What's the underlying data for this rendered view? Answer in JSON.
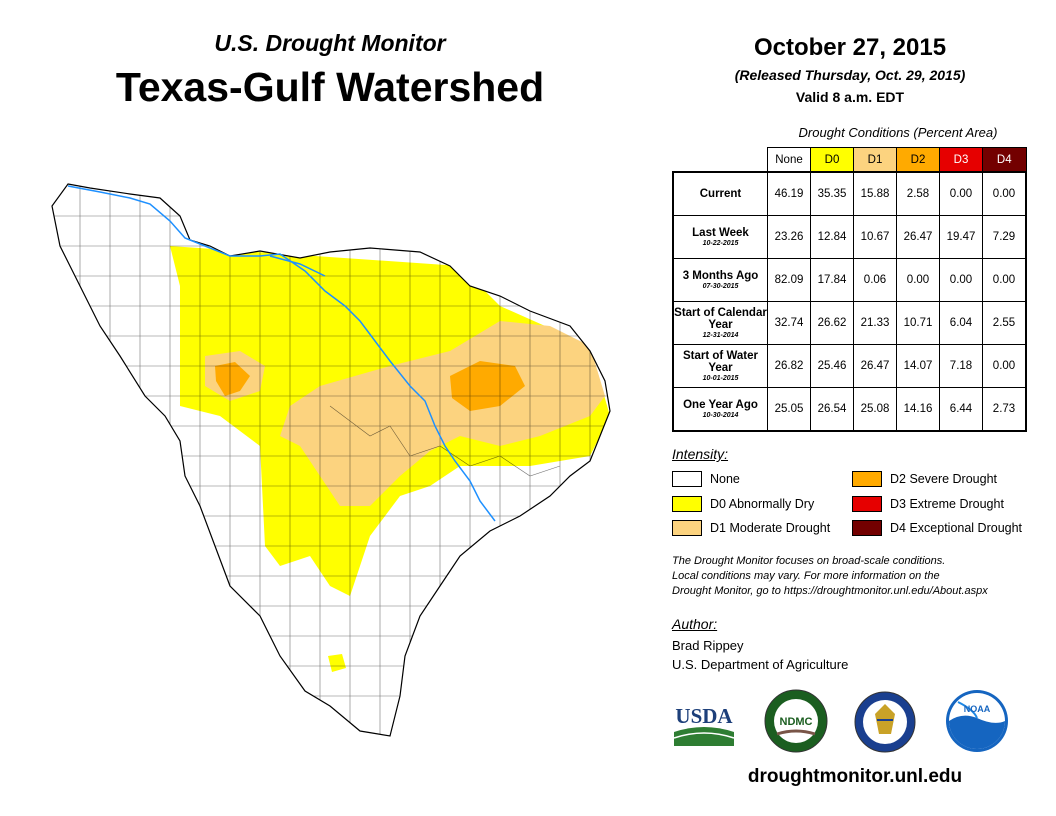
{
  "header": {
    "subtitle": "U.S. Drought Monitor",
    "title": "Texas-Gulf Watershed",
    "date": "October 27, 2015",
    "released": "(Released Thursday, Oct. 29, 2015)",
    "valid": "Valid 8 a.m. EDT"
  },
  "table": {
    "caption": "Drought Conditions (Percent Area)",
    "columns": [
      "None",
      "D0",
      "D1",
      "D2",
      "D3",
      "D4"
    ],
    "column_colors": [
      "#ffffff",
      "#ffff00",
      "#fcd37f",
      "#ffaa00",
      "#e60000",
      "#730000"
    ],
    "rows": [
      {
        "label": "Current",
        "date": "",
        "values": [
          "46.19",
          "35.35",
          "15.88",
          "2.58",
          "0.00",
          "0.00"
        ]
      },
      {
        "label": "Last Week",
        "date": "10-22-2015",
        "values": [
          "23.26",
          "12.84",
          "10.67",
          "26.47",
          "19.47",
          "7.29"
        ]
      },
      {
        "label": "3 Months Ago",
        "date": "07-30-2015",
        "values": [
          "82.09",
          "17.84",
          "0.06",
          "0.00",
          "0.00",
          "0.00"
        ]
      },
      {
        "label": "Start of Calendar Year",
        "date": "12-31-2014",
        "values": [
          "32.74",
          "26.62",
          "21.33",
          "10.71",
          "6.04",
          "2.55"
        ]
      },
      {
        "label": "Start of Water Year",
        "date": "10-01-2015",
        "values": [
          "26.82",
          "25.46",
          "26.47",
          "14.07",
          "7.18",
          "0.00"
        ]
      },
      {
        "label": "One Year Ago",
        "date": "10-30-2014",
        "values": [
          "25.05",
          "26.54",
          "25.08",
          "14.16",
          "6.44",
          "2.73"
        ]
      }
    ]
  },
  "legend": {
    "title": "Intensity:",
    "items": [
      {
        "label": "None",
        "color": "#ffffff"
      },
      {
        "label": "D0 Abnormally Dry",
        "color": "#ffff00"
      },
      {
        "label": "D1 Moderate Drought",
        "color": "#fcd37f"
      },
      {
        "label": "D2 Severe Drought",
        "color": "#ffaa00"
      },
      {
        "label": "D3 Extreme Drought",
        "color": "#e60000"
      },
      {
        "label": "D4 Exceptional Drought",
        "color": "#730000"
      }
    ]
  },
  "note": {
    "line1": "The Drought Monitor focuses on broad-scale conditions.",
    "line2": "Local conditions may vary. For more information on the",
    "line3": "Drought Monitor, go to https://droughtmonitor.unl.edu/About.aspx"
  },
  "author": {
    "title": "Author:",
    "name": "Brad Rippey",
    "org": "U.S. Department of Agriculture"
  },
  "logos": {
    "usda": "USDA",
    "ndmc": "NDMC",
    "noaa": "NOAA"
  },
  "website": "droughtmonitor.unl.edu",
  "map": {
    "river_color": "#1e90ff"
  }
}
